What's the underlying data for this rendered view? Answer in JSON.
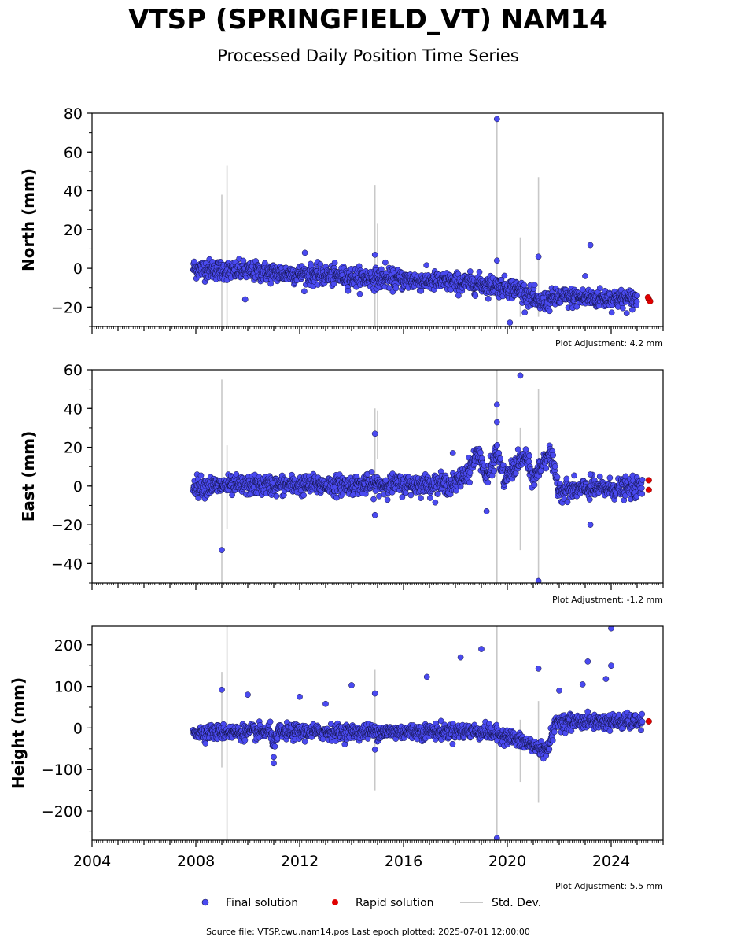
{
  "figure": {
    "title": "VTSP (SPRINGFIELD_VT) NAM14",
    "subtitle": "Processed Daily Position Time Series",
    "source_note": "Source file: VTSP.cwu.nam14.pos  Last epoch plotted: 2025-07-01 12:00:00"
  },
  "legend": {
    "final": "Final solution",
    "rapid": "Rapid solution",
    "std": "Std. Dev."
  },
  "colors": {
    "final_fill": "#4a4af0",
    "final_edge": "#101040",
    "rapid": "#e00000",
    "stddev": "#c8c8c8"
  },
  "chart_data": [
    {
      "type": "scatter",
      "ylabel": "North (mm)",
      "adjustment": "Plot Adjustment: 4.2 mm",
      "xlim": [
        2004,
        2026
      ],
      "ylim": [
        -30,
        80
      ],
      "xticks": [
        2004,
        2008,
        2012,
        2016,
        2020,
        2024
      ],
      "xtick_labels": [
        "",
        "",
        "",
        "",
        "",
        ""
      ],
      "yticks": [
        -20,
        0,
        20,
        40,
        60,
        80
      ],
      "ytick_labels": [
        "−20",
        "0",
        "20",
        "40",
        "60",
        "80"
      ],
      "trend": [
        [
          2007.9,
          0
        ],
        [
          2012,
          -3
        ],
        [
          2016,
          -6
        ],
        [
          2019,
          -8
        ],
        [
          2020.5,
          -11
        ],
        [
          2021.2,
          -18
        ],
        [
          2022,
          -15
        ],
        [
          2025,
          -16
        ]
      ],
      "noise": 2.5,
      "std_bars": [
        [
          2009.0,
          -30,
          38
        ],
        [
          2009.2,
          -30,
          53
        ],
        [
          2014.9,
          -30,
          43
        ],
        [
          2015.0,
          -30,
          23
        ],
        [
          2019.6,
          -30,
          77
        ],
        [
          2020.5,
          -25,
          16
        ],
        [
          2021.2,
          -25,
          47
        ]
      ],
      "outliers": [
        [
          2012.2,
          8
        ],
        [
          2019.6,
          77
        ],
        [
          2014.9,
          7
        ],
        [
          2015.3,
          3
        ],
        [
          2019.6,
          4
        ],
        [
          2021.2,
          6
        ],
        [
          2023.2,
          12
        ],
        [
          2009.9,
          -16
        ],
        [
          2020.1,
          -28
        ],
        [
          2023.0,
          -4
        ]
      ],
      "rapid_points": [
        [
          2025.45,
          -16
        ],
        [
          2025.5,
          -17
        ],
        [
          2025.42,
          -15
        ]
      ]
    },
    {
      "type": "scatter",
      "ylabel": "East (mm)",
      "adjustment": "Plot Adjustment: -1.2 mm",
      "xlim": [
        2004,
        2026
      ],
      "ylim": [
        -50,
        60
      ],
      "xticks": [
        2004,
        2008,
        2012,
        2016,
        2020,
        2024
      ],
      "xtick_labels": [
        "",
        "",
        "",
        "",
        "",
        ""
      ],
      "yticks": [
        -40,
        -20,
        0,
        20,
        40,
        60
      ],
      "ytick_labels": [
        "−40",
        "−20",
        "0",
        "20",
        "40",
        "60"
      ],
      "trend": [
        [
          2007.9,
          0
        ],
        [
          2018.0,
          1
        ],
        [
          2018.5,
          8
        ],
        [
          2018.9,
          18
        ],
        [
          2019.2,
          3
        ],
        [
          2019.6,
          18
        ],
        [
          2019.9,
          3
        ],
        [
          2020.4,
          12
        ],
        [
          2020.7,
          15
        ],
        [
          2021.0,
          3
        ],
        [
          2021.6,
          18
        ],
        [
          2022.0,
          -2
        ],
        [
          2025.2,
          -1
        ]
      ],
      "noise": 2.5,
      "std_bars": [
        [
          2009.0,
          -50,
          55
        ],
        [
          2009.2,
          -22,
          21
        ],
        [
          2014.9,
          -5,
          40
        ],
        [
          2015.0,
          14,
          39
        ],
        [
          2019.6,
          -50,
          60
        ],
        [
          2020.5,
          -33,
          30
        ],
        [
          2021.2,
          -50,
          50
        ]
      ],
      "outliers": [
        [
          2009.0,
          -33
        ],
        [
          2014.9,
          27
        ],
        [
          2014.9,
          -15
        ],
        [
          2019.6,
          42
        ],
        [
          2019.6,
          33
        ],
        [
          2020.5,
          57
        ],
        [
          2021.2,
          -49
        ],
        [
          2023.2,
          -20
        ],
        [
          2023.2,
          6
        ],
        [
          2017.9,
          17
        ],
        [
          2019.2,
          -13
        ]
      ],
      "rapid_points": [
        [
          2025.45,
          3
        ],
        [
          2025.45,
          -2
        ]
      ]
    },
    {
      "type": "scatter",
      "ylabel": "Height (mm)",
      "adjustment": "Plot Adjustment: 5.5 mm",
      "xlim": [
        2004,
        2026
      ],
      "ylim": [
        -270,
        245
      ],
      "xticks": [
        2004,
        2008,
        2012,
        2016,
        2020,
        2024
      ],
      "xtick_labels": [
        "2004",
        "2008",
        "2012",
        "2016",
        "2020",
        "2024"
      ],
      "yticks": [
        -200,
        -100,
        0,
        100,
        200
      ],
      "ytick_labels": [
        "−200",
        "−100",
        "0",
        "100",
        "200"
      ],
      "trend": [
        [
          2007.9,
          -10
        ],
        [
          2010.9,
          -10
        ],
        [
          2011.0,
          -40
        ],
        [
          2011.2,
          -10
        ],
        [
          2019.0,
          -8
        ],
        [
          2020.0,
          -20
        ],
        [
          2021.5,
          -55
        ],
        [
          2021.9,
          15
        ],
        [
          2025.2,
          15
        ]
      ],
      "noise": 9,
      "std_bars": [
        [
          2009.0,
          -95,
          135
        ],
        [
          2009.2,
          -270,
          245
        ],
        [
          2014.9,
          -150,
          140
        ],
        [
          2019.6,
          -270,
          245
        ],
        [
          2020.5,
          -130,
          20
        ],
        [
          2021.2,
          -180,
          65
        ]
      ],
      "outliers": [
        [
          2009.0,
          92
        ],
        [
          2010.0,
          80
        ],
        [
          2012.0,
          75
        ],
        [
          2013.0,
          58
        ],
        [
          2014.0,
          103
        ],
        [
          2014.9,
          83
        ],
        [
          2014.9,
          -52
        ],
        [
          2016.9,
          123
        ],
        [
          2018.2,
          170
        ],
        [
          2019.0,
          190
        ],
        [
          2021.2,
          143
        ],
        [
          2022.9,
          105
        ],
        [
          2023.1,
          160
        ],
        [
          2023.8,
          118
        ],
        [
          2024.0,
          240
        ],
        [
          2024.0,
          150
        ],
        [
          2019.6,
          -265
        ],
        [
          2011.0,
          -85
        ],
        [
          2011.0,
          -70
        ],
        [
          2022.0,
          90
        ]
      ],
      "rapid_points": [
        [
          2025.45,
          16
        ]
      ]
    }
  ]
}
